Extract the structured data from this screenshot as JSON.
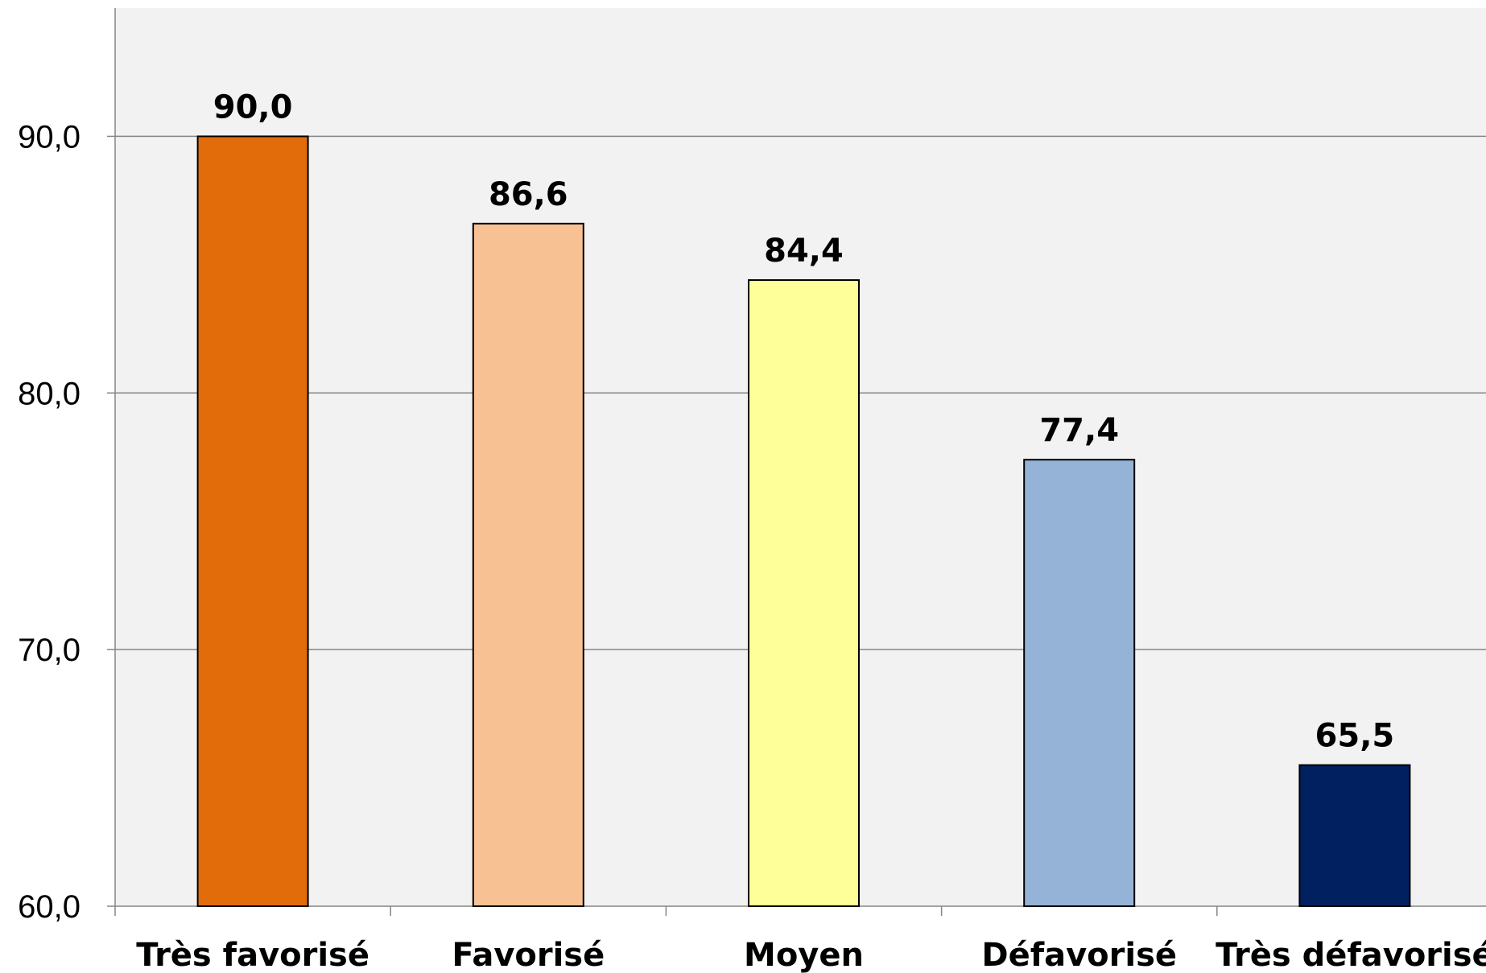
{
  "chart_data": {
    "type": "bar",
    "title": "",
    "xlabel": "",
    "ylabel": "",
    "categories": [
      "Très favorisé",
      "Favorisé",
      "Moyen",
      "Défavorisé",
      "Très défavorisé"
    ],
    "values": [
      90.0,
      86.6,
      84.4,
      77.4,
      65.5
    ],
    "value_labels": [
      "90,0",
      "86,6",
      "84,4",
      "77,4",
      "65,5"
    ],
    "bar_colors": [
      "#E36C0A",
      "#F8C193",
      "#FFFF99",
      "#95B3D7",
      "#002060"
    ],
    "ylim": [
      60,
      95
    ],
    "yticks": [
      60,
      70,
      80,
      90
    ],
    "ytick_labels": [
      "60,0",
      "70,0",
      "80,0",
      "90,0"
    ],
    "grid": true,
    "legend": "none",
    "plot_background": "#F2F2F2",
    "gridline_color": "#868686",
    "axis_color": "#868686",
    "bar_outline_color": "#000000"
  }
}
